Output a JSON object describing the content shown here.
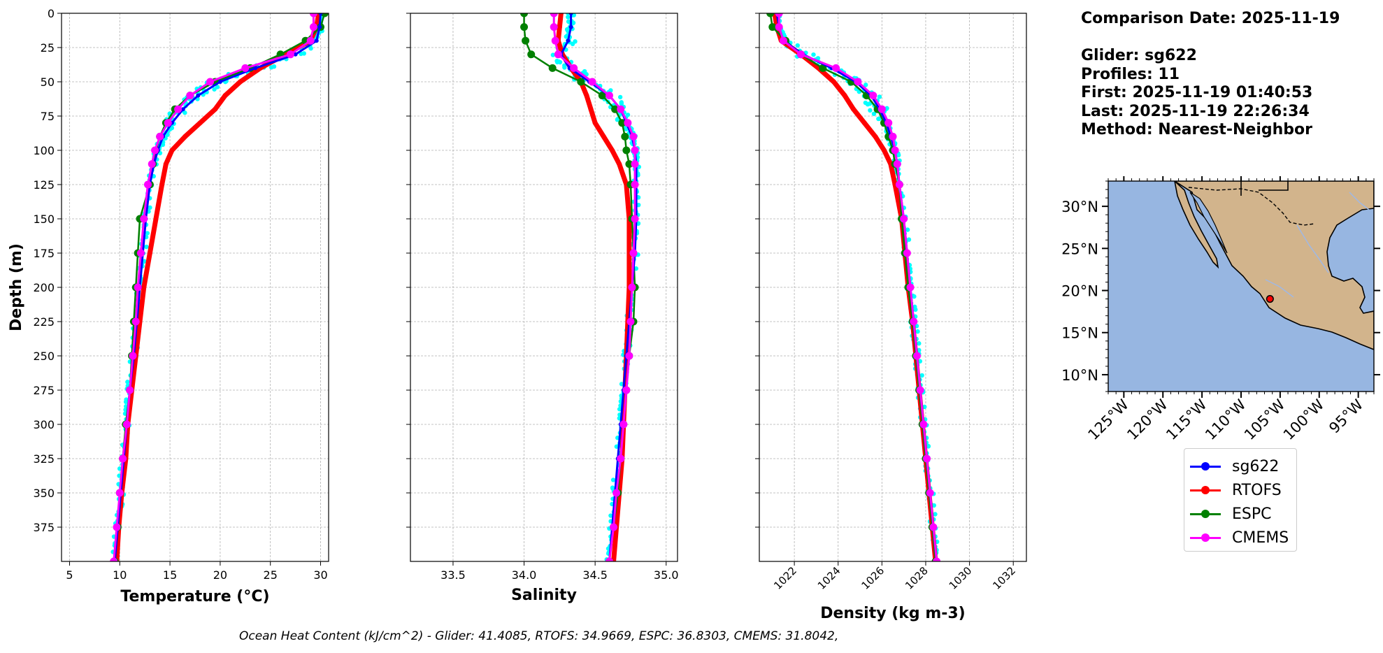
{
  "info": {
    "date_line": "Comparison Date: 2025-11-19",
    "glider_line": "Glider: sg622",
    "profiles_line": "Profiles: 11",
    "first_line": "First: 2025-11-19 01:40:53",
    "last_line": "Last: 2025-11-19 22:26:34",
    "method_line": "Method: Nearest-Neighbor"
  },
  "footer": "Ocean Heat Content (kJ/cm^2) - Glider: 41.4085,  RTOFS: 34.9669,  ESPC: 36.8303,  CMEMS: 31.8042,",
  "colors": {
    "sg622": "#0000ff",
    "RTOFS": "#ff0000",
    "ESPC": "#008000",
    "CMEMS": "#ff00ff",
    "raw": "#00ffff",
    "land": "#d2b48c",
    "ocean": "#97b6e1"
  },
  "legend": [
    {
      "name": "sg622",
      "color": "#0000ff"
    },
    {
      "name": "RTOFS",
      "color": "#ff0000"
    },
    {
      "name": "ESPC",
      "color": "#008000"
    },
    {
      "name": "CMEMS",
      "color": "#ff00ff"
    }
  ],
  "chart_data": [
    {
      "type": "line",
      "xlabel": "Temperature (°C)",
      "ylabel": "Depth (m)",
      "xlim": [
        4.2,
        30.8
      ],
      "ylim": [
        400,
        0
      ],
      "xticks": [
        5,
        10,
        15,
        20,
        25,
        30
      ],
      "yticks": [
        0,
        25,
        50,
        75,
        100,
        125,
        150,
        175,
        200,
        225,
        250,
        275,
        300,
        325,
        350,
        375
      ],
      "grid": true,
      "depth": [
        0,
        10,
        20,
        30,
        40,
        50,
        60,
        70,
        80,
        90,
        100,
        110,
        125,
        150,
        175,
        200,
        225,
        250,
        275,
        300,
        325,
        350,
        375,
        400
      ],
      "series": [
        {
          "name": "sg622",
          "values": [
            30.0,
            29.9,
            29.6,
            27.5,
            23.5,
            20.0,
            17.8,
            16.3,
            15.2,
            14.3,
            13.8,
            13.4,
            13.0,
            12.6,
            12.3,
            12.0,
            11.7,
            11.4,
            11.0,
            10.7,
            10.4,
            10.1,
            9.8,
            9.5
          ]
        },
        {
          "name": "RTOFS",
          "values": [
            29.8,
            29.6,
            29.0,
            26.5,
            24.0,
            22.0,
            20.5,
            19.5,
            18.0,
            16.5,
            15.2,
            14.6,
            14.2,
            13.6,
            13.0,
            12.4,
            12.0,
            11.6,
            11.2,
            10.8,
            10.6,
            10.2,
            9.9,
            9.7
          ]
        },
        {
          "name": "ESPC",
          "values": [
            30.4,
            30.0,
            28.5,
            26.0,
            23.0,
            19.5,
            17.0,
            15.5,
            14.6,
            14.0,
            13.6,
            13.3,
            13.0,
            12.0,
            11.8,
            11.6,
            11.4,
            11.2,
            11.0,
            10.6,
            10.3,
            10.0,
            9.8,
            9.5
          ]
        },
        {
          "name": "CMEMS",
          "values": [
            29.3,
            29.3,
            29.0,
            27.0,
            22.5,
            19.0,
            17.0,
            15.8,
            14.8,
            14.0,
            13.5,
            13.2,
            12.8,
            12.4,
            12.1,
            11.8,
            11.6,
            11.3,
            11.0,
            10.7,
            10.3,
            10.0,
            9.7,
            9.4
          ]
        }
      ]
    },
    {
      "type": "line",
      "xlabel": "Salinity",
      "xlim": [
        33.2,
        35.08
      ],
      "ylim": [
        400,
        0
      ],
      "xticks": [
        33.5,
        34.0,
        34.5,
        35.0
      ],
      "xtick_labels": [
        "33.5",
        "34.0",
        "34.5",
        "35.0"
      ],
      "grid": true,
      "depth": [
        0,
        10,
        20,
        30,
        40,
        50,
        60,
        70,
        80,
        90,
        100,
        110,
        125,
        150,
        175,
        200,
        225,
        250,
        275,
        300,
        325,
        350,
        375,
        400
      ],
      "series": [
        {
          "name": "sg622",
          "values": [
            34.33,
            34.33,
            34.31,
            34.26,
            34.32,
            34.46,
            34.6,
            34.68,
            34.72,
            34.76,
            34.78,
            34.79,
            34.79,
            34.79,
            34.78,
            34.76,
            34.74,
            34.72,
            34.7,
            34.68,
            34.66,
            34.64,
            34.62,
            34.6
          ]
        },
        {
          "name": "RTOFS",
          "values": [
            34.26,
            34.25,
            34.24,
            34.27,
            34.33,
            34.4,
            34.44,
            34.47,
            34.5,
            34.56,
            34.62,
            34.67,
            34.72,
            34.74,
            34.74,
            34.74,
            34.73,
            34.72,
            34.71,
            34.7,
            34.69,
            34.67,
            34.65,
            34.63
          ]
        },
        {
          "name": "ESPC",
          "values": [
            34.0,
            34.0,
            34.01,
            34.05,
            34.2,
            34.4,
            34.55,
            34.64,
            34.69,
            34.71,
            34.72,
            34.74,
            34.75,
            34.76,
            34.77,
            34.78,
            34.77,
            34.74,
            34.72,
            34.7,
            34.68,
            34.66,
            34.63,
            34.6
          ]
        },
        {
          "name": "CMEMS",
          "values": [
            34.21,
            34.21,
            34.22,
            34.24,
            34.35,
            34.48,
            34.6,
            34.68,
            34.73,
            34.77,
            34.78,
            34.78,
            34.78,
            34.78,
            34.77,
            34.76,
            34.75,
            34.74,
            34.72,
            34.7,
            34.68,
            34.65,
            34.63,
            34.6
          ]
        }
      ]
    },
    {
      "type": "line",
      "xlabel": "Density (kg m-3)",
      "xlim": [
        1020.4,
        1032.6
      ],
      "ylim": [
        400,
        0
      ],
      "xticks": [
        1022,
        1024,
        1026,
        1028,
        1030,
        1032
      ],
      "grid": true,
      "depth": [
        0,
        10,
        20,
        30,
        40,
        50,
        60,
        70,
        80,
        90,
        100,
        110,
        125,
        150,
        175,
        200,
        225,
        250,
        275,
        300,
        325,
        350,
        375,
        400
      ],
      "series": [
        {
          "name": "sg622",
          "values": [
            1021.2,
            1021.3,
            1021.5,
            1022.4,
            1023.7,
            1024.8,
            1025.5,
            1025.9,
            1026.2,
            1026.4,
            1026.6,
            1026.7,
            1026.8,
            1027.0,
            1027.15,
            1027.3,
            1027.45,
            1027.6,
            1027.75,
            1027.9,
            1028.05,
            1028.2,
            1028.35,
            1028.5
          ]
        },
        {
          "name": "RTOFS",
          "values": [
            1021.1,
            1021.2,
            1021.4,
            1022.3,
            1023.1,
            1023.8,
            1024.3,
            1024.7,
            1025.2,
            1025.7,
            1026.1,
            1026.4,
            1026.6,
            1026.9,
            1027.05,
            1027.2,
            1027.4,
            1027.55,
            1027.7,
            1027.85,
            1028.0,
            1028.15,
            1028.3,
            1028.45
          ]
        },
        {
          "name": "ESPC",
          "values": [
            1020.9,
            1021.0,
            1021.6,
            1022.3,
            1023.3,
            1024.6,
            1025.3,
            1025.8,
            1026.1,
            1026.3,
            1026.5,
            1026.6,
            1026.8,
            1026.9,
            1027.05,
            1027.2,
            1027.4,
            1027.55,
            1027.7,
            1027.85,
            1028.0,
            1028.15,
            1028.3,
            1028.45
          ]
        },
        {
          "name": "CMEMS",
          "values": [
            1021.3,
            1021.3,
            1021.5,
            1022.3,
            1023.9,
            1024.9,
            1025.6,
            1026.0,
            1026.3,
            1026.5,
            1026.6,
            1026.7,
            1026.8,
            1027.0,
            1027.15,
            1027.3,
            1027.45,
            1027.6,
            1027.75,
            1027.9,
            1028.05,
            1028.2,
            1028.35,
            1028.5
          ]
        }
      ]
    },
    {
      "type": "map",
      "lon_range": [
        -127,
        -93
      ],
      "lat_range": [
        8,
        33
      ],
      "xticks": [
        -125,
        -120,
        -115,
        -110,
        -105,
        -100,
        -95
      ],
      "xtick_labels": [
        "125°W",
        "120°W",
        "115°W",
        "110°W",
        "105°W",
        "100°W",
        "95°W"
      ],
      "yticks": [
        10,
        15,
        20,
        25,
        30
      ],
      "ytick_labels": [
        "10°N",
        "15°N",
        "20°N",
        "25°N",
        "30°N"
      ],
      "glider_position": {
        "lon": -106.3,
        "lat": 19.0
      }
    }
  ]
}
